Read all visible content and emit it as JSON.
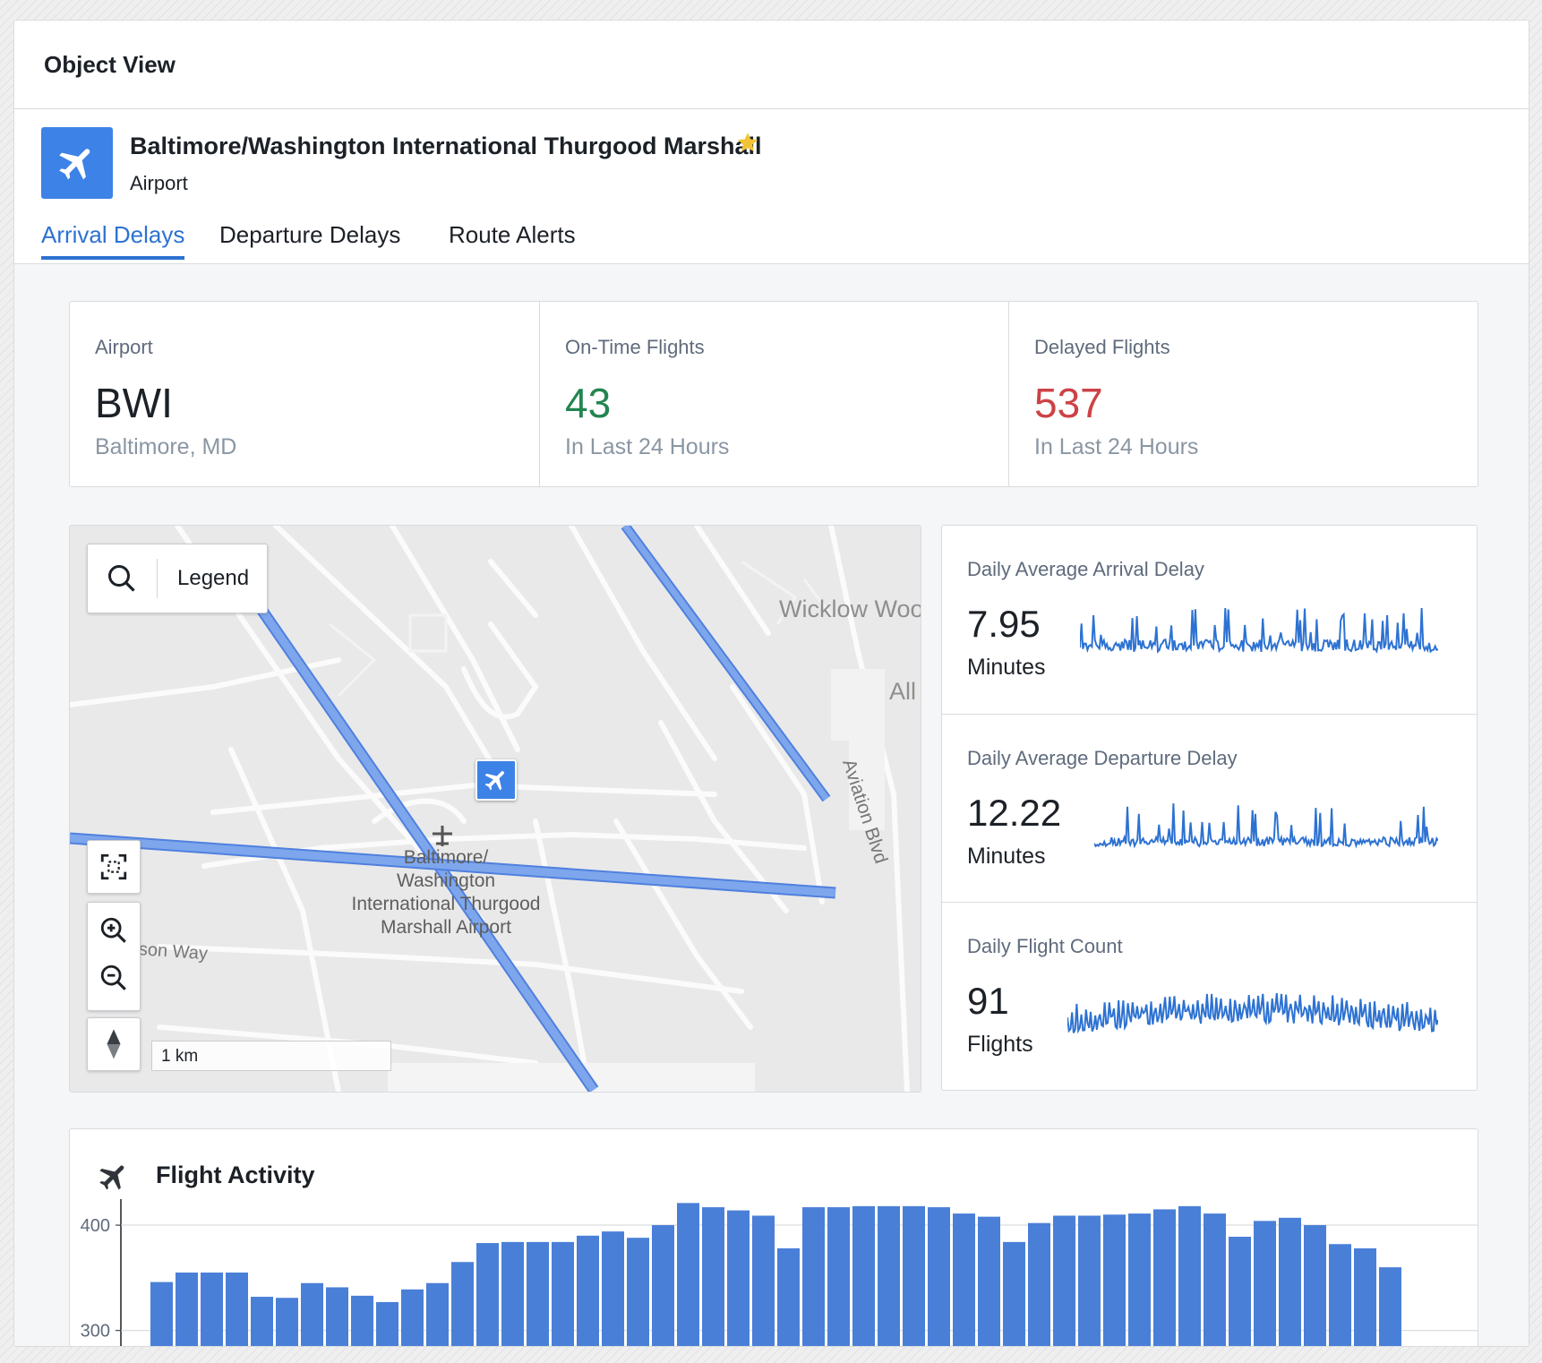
{
  "panel": {
    "title": "Object View"
  },
  "object": {
    "name": "Baltimore/Washington International Thurgood Marshall",
    "type": "Airport",
    "icon": "airplane-icon",
    "favorite_icon": "star-icon",
    "accent": "#3d82e6"
  },
  "tabs": [
    {
      "label": "Arrival Delays",
      "active": true
    },
    {
      "label": "Departure Delays",
      "active": false
    },
    {
      "label": "Route Alerts",
      "active": false
    }
  ],
  "kpis": [
    {
      "label": "Airport",
      "value": "BWI",
      "sub": "Baltimore, MD",
      "color": "#1c2127"
    },
    {
      "label": "On-Time Flights",
      "value": "43",
      "sub": "In Last 24 Hours",
      "color": "#238551"
    },
    {
      "label": "Delayed Flights",
      "value": "537",
      "sub": "In Last 24 Hours",
      "color": "#cd4246"
    }
  ],
  "map": {
    "legend_label": "Legend",
    "scale_label": "1 km",
    "airport_label": [
      "Baltimore/",
      "Washington",
      "International Thurgood",
      "Marshall Airport"
    ],
    "street_labels": {
      "wicklow": "Wicklow Woo",
      "all": "All",
      "aviation": "Aviation Blvd",
      "mathison": "Mathison Way"
    },
    "controls": [
      "search-icon",
      "fit-bounds-icon",
      "zoom-in-icon",
      "zoom-out-icon",
      "compass-icon"
    ]
  },
  "metrics": [
    {
      "label": "Daily Average Arrival Delay",
      "value": "7.95",
      "unit": "Minutes"
    },
    {
      "label": "Daily Average Departure Delay",
      "value": "12.22",
      "unit": "Minutes"
    },
    {
      "label": "Daily Flight Count",
      "value": "91",
      "unit": "Flights"
    }
  ],
  "activity": {
    "title": "Flight Activity",
    "icon": "airplane-icon"
  },
  "chart_data": {
    "type": "bar",
    "title": "Flight Activity",
    "y_ticks": [
      "400",
      "300"
    ],
    "ylim": [
      270,
      440
    ],
    "values": [
      346,
      355,
      355,
      355,
      332,
      331,
      345,
      341,
      333,
      327,
      339,
      345,
      365,
      383,
      384,
      384,
      384,
      390,
      394,
      388,
      400,
      421,
      417,
      414,
      409,
      378,
      417,
      417,
      418,
      418,
      418,
      417,
      411,
      408,
      384,
      402,
      409,
      409,
      410,
      411,
      415,
      418,
      411,
      389,
      404,
      407,
      400,
      382,
      378,
      360
    ],
    "color": "#4a7fd8"
  }
}
